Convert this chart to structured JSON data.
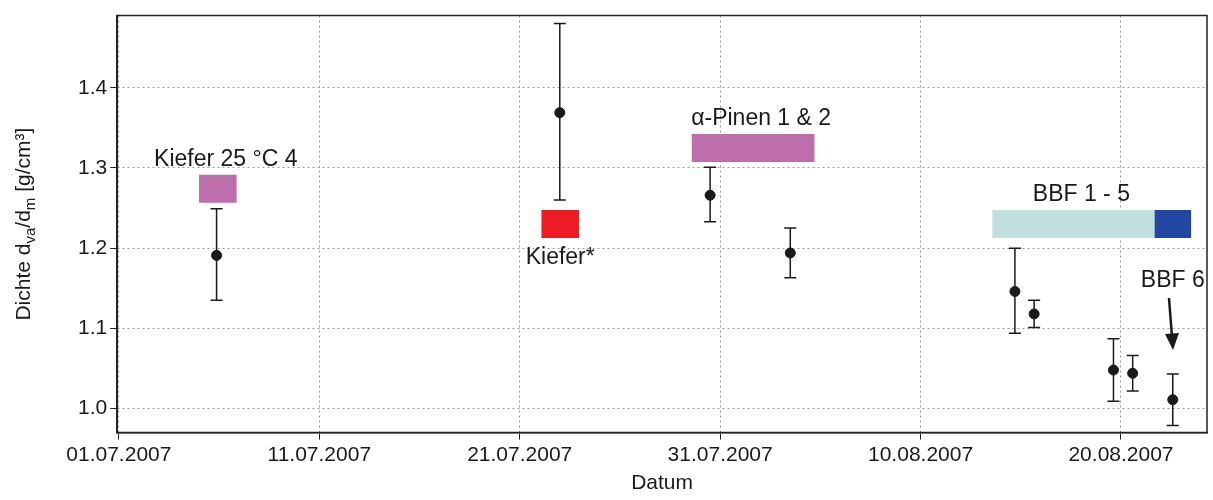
{
  "chart_data": {
    "type": "scatter",
    "xlabel": "Datum",
    "ylabel": "Dichte d$_{va}$/d$_{m}$ [g/cm³]",
    "xlim": [
      "2007-06-30T22:00",
      "2007-08-24T07:00"
    ],
    "xticks": [
      {
        "value": "2007-07-01",
        "label": "01.07.2007"
      },
      {
        "value": "2007-07-11",
        "label": "11.07.2007"
      },
      {
        "value": "2007-07-21",
        "label": "21.07.2007"
      },
      {
        "value": "2007-07-31",
        "label": "31.07.2007"
      },
      {
        "value": "2007-08-10",
        "label": "10.08.2007"
      },
      {
        "value": "2007-08-20",
        "label": "20.08.2007"
      }
    ],
    "ylim": [
      0.97,
      1.49
    ],
    "yticks": [
      {
        "value": 1.0,
        "label": "1.0"
      },
      1.1,
      1.2,
      1.3,
      1.4
    ],
    "grid": true,
    "series": [
      {
        "type": "line",
        "marker": "none",
        "name": "Kiefer 25 °C 4",
        "color": "#bd6fab",
        "x": [
          "2007-07-05T00:00",
          "2007-07-06T21:00"
        ],
        "values": [
          1.274,
          1.274
        ]
      },
      {
        "type": "line",
        "marker": "none",
        "name": "Kiefer*",
        "color": "#ed1c24",
        "x": [
          "2007-07-22T02:00",
          "2007-07-23T23:00"
        ],
        "values": [
          1.23,
          1.23
        ]
      },
      {
        "type": "line",
        "marker": "none",
        "name": "α-Pinen 1 & 2",
        "color": "#bd6fab",
        "x": [
          "2007-07-29T14:00",
          "2007-08-04T17:00"
        ],
        "values": [
          1.325,
          1.325
        ]
      },
      {
        "type": "line",
        "marker": "none",
        "name": "BBF 1 - 5",
        "color": "#bfe0df",
        "x": [
          "2007-08-13T14:00",
          "2007-08-21T16:00"
        ],
        "values": [
          1.23,
          1.23
        ]
      },
      {
        "type": "line",
        "marker": "none",
        "color": "#2147a0",
        "x": [
          "2007-08-21T16:00",
          "2007-08-23T12:00"
        ],
        "values": [
          1.23,
          1.23
        ]
      },
      {
        "marker": "circle",
        "color": "#1a1a1a",
        "x": [
          "2007-07-05T21:00",
          "2007-07-23T00:00",
          "2007-07-30T12:00",
          "2007-08-03T12:00",
          "2007-08-14T17:00",
          "2007-08-15T16:00",
          "2007-08-19T15:00",
          "2007-08-20T14:00",
          "2007-08-22T14:00"
        ],
        "values": [
          1.191,
          1.369,
          1.266,
          1.194,
          1.146,
          1.118,
          1.048,
          1.044,
          1.011
        ],
        "errors": [
          [
            1.135,
            1.249
          ],
          [
            1.26,
            1.48
          ],
          [
            1.233,
            1.301
          ],
          [
            1.163,
            1.225
          ],
          [
            1.094,
            1.2
          ],
          [
            1.101,
            1.135
          ],
          [
            1.009,
            1.087
          ],
          [
            1.022,
            1.066
          ],
          [
            0.979,
            1.043
          ]
        ]
      }
    ],
    "annotations": [
      "BBF 6"
    ]
  }
}
